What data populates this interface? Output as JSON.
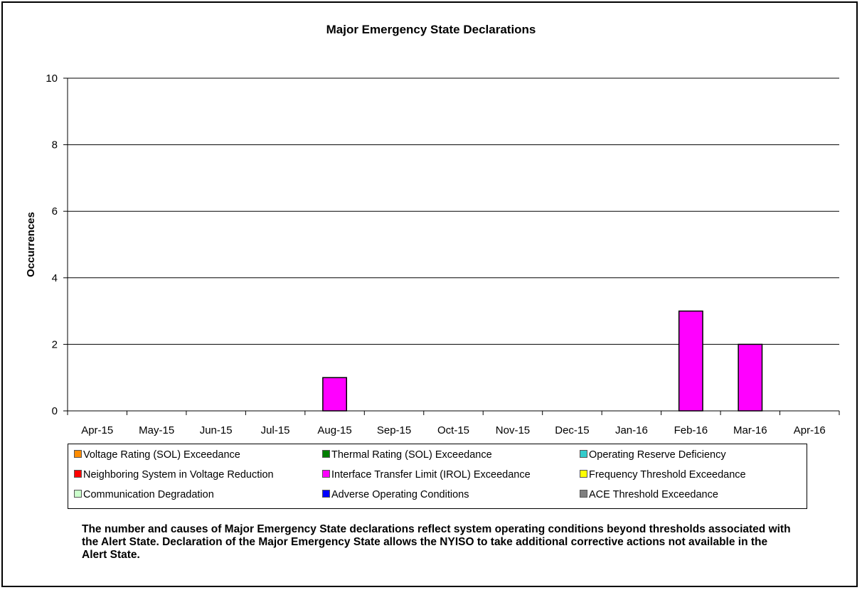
{
  "chart_data": {
    "type": "bar",
    "title": "Major Emergency State Declarations",
    "ylabel": "Occurrences",
    "xlabel": "",
    "ylim": [
      0,
      10
    ],
    "yticks": [
      0,
      2,
      4,
      6,
      8,
      10
    ],
    "grid": true,
    "stacked": true,
    "categories": [
      "Apr-15",
      "May-15",
      "Jun-15",
      "Jul-15",
      "Aug-15",
      "Sep-15",
      "Oct-15",
      "Nov-15",
      "Dec-15",
      "Jan-16",
      "Feb-16",
      "Mar-16",
      "Apr-16"
    ],
    "series": [
      {
        "name": "Voltage Rating (SOL) Exceedance",
        "color": "#ff8c00",
        "values": [
          0,
          0,
          0,
          0,
          0,
          0,
          0,
          0,
          0,
          0,
          0,
          0,
          0
        ]
      },
      {
        "name": "Thermal Rating (SOL) Exceedance",
        "color": "#008000",
        "values": [
          0,
          0,
          0,
          0,
          0,
          0,
          0,
          0,
          0,
          0,
          0,
          0,
          0
        ]
      },
      {
        "name": "Operating Reserve Deficiency",
        "color": "#33cccc",
        "values": [
          0,
          0,
          0,
          0,
          0,
          0,
          0,
          0,
          0,
          0,
          0,
          0,
          0
        ]
      },
      {
        "name": "Neighboring System in Voltage Reduction",
        "color": "#ff0000",
        "values": [
          0,
          0,
          0,
          0,
          0,
          0,
          0,
          0,
          0,
          0,
          0,
          0,
          0
        ]
      },
      {
        "name": "Interface Transfer Limit (IROL) Exceedance",
        "color": "#ff00ff",
        "values": [
          0,
          0,
          0,
          0,
          1,
          0,
          0,
          0,
          0,
          0,
          3,
          2,
          0
        ]
      },
      {
        "name": "Frequency Threshold Exceedance",
        "color": "#ffff00",
        "values": [
          0,
          0,
          0,
          0,
          0,
          0,
          0,
          0,
          0,
          0,
          0,
          0,
          0
        ]
      },
      {
        "name": "Communication Degradation",
        "color": "#ccffcc",
        "values": [
          0,
          0,
          0,
          0,
          0,
          0,
          0,
          0,
          0,
          0,
          0,
          0,
          0
        ]
      },
      {
        "name": "Adverse Operating Conditions",
        "color": "#0000ff",
        "values": [
          0,
          0,
          0,
          0,
          0,
          0,
          0,
          0,
          0,
          0,
          0,
          0,
          0
        ]
      },
      {
        "name": "ACE Threshold Exceedance",
        "color": "#808080",
        "values": [
          0,
          0,
          0,
          0,
          0,
          0,
          0,
          0,
          0,
          0,
          0,
          0,
          0
        ]
      }
    ],
    "legend_position": "bottom"
  },
  "note": "The number and causes of Major Emergency State declarations reflect system operating conditions beyond thresholds associated with the Alert State.  Declaration of the Major Emergency State allows the NYISO to take additional corrective actions not available in the Alert State."
}
